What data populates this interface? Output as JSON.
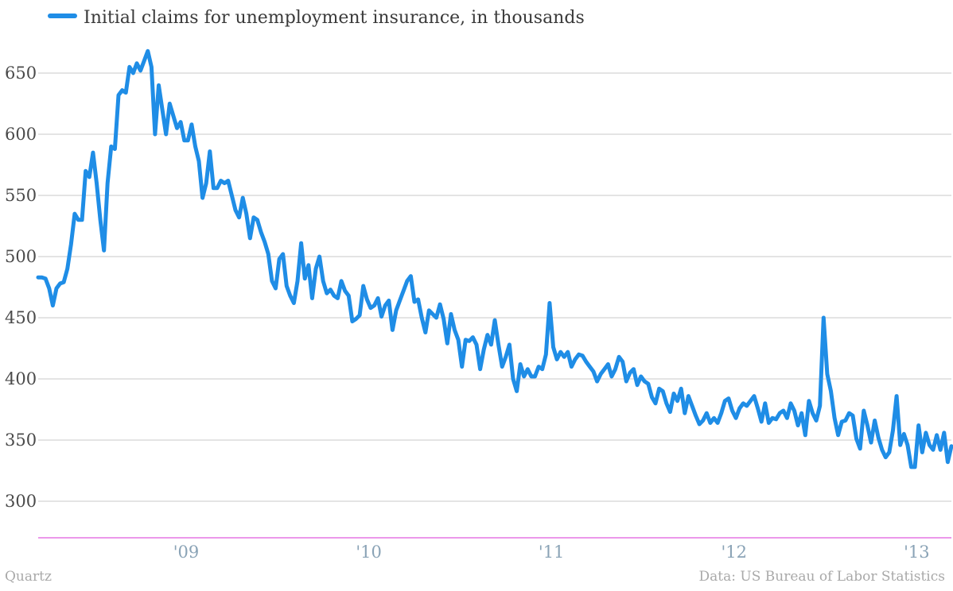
{
  "chart_data": {
    "type": "line",
    "title": "",
    "xlabel": "",
    "ylabel": "",
    "legend_placement": "top-left",
    "grid": true,
    "ylim": [
      270,
      670
    ],
    "xlim": [
      2008.19,
      2013.19
    ],
    "x_ticks": [
      {
        "value": 2009,
        "label": "'09"
      },
      {
        "value": 2010,
        "label": "'10"
      },
      {
        "value": 2011,
        "label": "'11"
      },
      {
        "value": 2012,
        "label": "'12"
      },
      {
        "value": 2013,
        "label": "'13"
      }
    ],
    "y_ticks": [
      300,
      350,
      400,
      450,
      500,
      550,
      600,
      650
    ],
    "series": [
      {
        "name": "Initial claims for unemployment insurance, in thousands",
        "color": "#1f8de6",
        "points": [
          [
            2008.19,
            483
          ],
          [
            2008.21,
            483
          ],
          [
            2008.23,
            482
          ],
          [
            2008.25,
            474
          ],
          [
            2008.27,
            460
          ],
          [
            2008.29,
            474
          ],
          [
            2008.31,
            478
          ],
          [
            2008.33,
            479
          ],
          [
            2008.35,
            490
          ],
          [
            2008.37,
            510
          ],
          [
            2008.39,
            535
          ],
          [
            2008.41,
            530
          ],
          [
            2008.43,
            530
          ],
          [
            2008.45,
            570
          ],
          [
            2008.47,
            565
          ],
          [
            2008.49,
            585
          ],
          [
            2008.51,
            560
          ],
          [
            2008.53,
            530
          ],
          [
            2008.55,
            505
          ],
          [
            2008.57,
            560
          ],
          [
            2008.59,
            590
          ],
          [
            2008.61,
            588
          ],
          [
            2008.63,
            632
          ],
          [
            2008.65,
            636
          ],
          [
            2008.67,
            634
          ],
          [
            2008.69,
            655
          ],
          [
            2008.71,
            650
          ],
          [
            2008.73,
            658
          ],
          [
            2008.75,
            652
          ],
          [
            2008.77,
            660
          ],
          [
            2008.79,
            668
          ],
          [
            2008.81,
            655
          ],
          [
            2008.83,
            600
          ],
          [
            2008.85,
            640
          ],
          [
            2008.87,
            620
          ],
          [
            2008.89,
            600
          ],
          [
            2008.91,
            625
          ],
          [
            2008.93,
            615
          ],
          [
            2008.95,
            605
          ],
          [
            2008.97,
            610
          ],
          [
            2008.99,
            595
          ],
          [
            2009.01,
            595
          ],
          [
            2009.03,
            608
          ],
          [
            2009.05,
            590
          ],
          [
            2009.07,
            578
          ],
          [
            2009.09,
            548
          ],
          [
            2009.11,
            560
          ],
          [
            2009.13,
            586
          ],
          [
            2009.15,
            556
          ],
          [
            2009.17,
            556
          ],
          [
            2009.19,
            562
          ],
          [
            2009.21,
            560
          ],
          [
            2009.23,
            562
          ],
          [
            2009.25,
            550
          ],
          [
            2009.27,
            538
          ],
          [
            2009.29,
            532
          ],
          [
            2009.31,
            548
          ],
          [
            2009.33,
            535
          ],
          [
            2009.35,
            515
          ],
          [
            2009.37,
            532
          ],
          [
            2009.39,
            530
          ],
          [
            2009.41,
            520
          ],
          [
            2009.43,
            512
          ],
          [
            2009.45,
            502
          ],
          [
            2009.47,
            480
          ],
          [
            2009.49,
            474
          ],
          [
            2009.51,
            498
          ],
          [
            2009.53,
            502
          ],
          [
            2009.55,
            476
          ],
          [
            2009.57,
            468
          ],
          [
            2009.59,
            462
          ],
          [
            2009.61,
            480
          ],
          [
            2009.63,
            511
          ],
          [
            2009.65,
            482
          ],
          [
            2009.67,
            493
          ],
          [
            2009.69,
            466
          ],
          [
            2009.71,
            490
          ],
          [
            2009.73,
            500
          ],
          [
            2009.75,
            480
          ],
          [
            2009.77,
            470
          ],
          [
            2009.79,
            473
          ],
          [
            2009.81,
            468
          ],
          [
            2009.83,
            466
          ],
          [
            2009.85,
            480
          ],
          [
            2009.87,
            472
          ],
          [
            2009.89,
            468
          ],
          [
            2009.91,
            447
          ],
          [
            2009.93,
            449
          ],
          [
            2009.95,
            452
          ],
          [
            2009.97,
            476
          ],
          [
            2009.99,
            465
          ],
          [
            2010.01,
            458
          ],
          [
            2010.03,
            460
          ],
          [
            2010.05,
            466
          ],
          [
            2010.07,
            451
          ],
          [
            2010.09,
            460
          ],
          [
            2010.11,
            464
          ],
          [
            2010.13,
            440
          ],
          [
            2010.15,
            456
          ],
          [
            2010.17,
            464
          ],
          [
            2010.19,
            472
          ],
          [
            2010.21,
            480
          ],
          [
            2010.23,
            484
          ],
          [
            2010.25,
            463
          ],
          [
            2010.27,
            465
          ],
          [
            2010.29,
            450
          ],
          [
            2010.31,
            438
          ],
          [
            2010.33,
            456
          ],
          [
            2010.35,
            453
          ],
          [
            2010.37,
            450
          ],
          [
            2010.39,
            461
          ],
          [
            2010.41,
            449
          ],
          [
            2010.43,
            429
          ],
          [
            2010.45,
            453
          ],
          [
            2010.47,
            440
          ],
          [
            2010.49,
            432
          ],
          [
            2010.51,
            410
          ],
          [
            2010.53,
            432
          ],
          [
            2010.55,
            431
          ],
          [
            2010.57,
            434
          ],
          [
            2010.59,
            428
          ],
          [
            2010.61,
            408
          ],
          [
            2010.63,
            424
          ],
          [
            2010.65,
            436
          ],
          [
            2010.67,
            428
          ],
          [
            2010.69,
            448
          ],
          [
            2010.71,
            428
          ],
          [
            2010.73,
            410
          ],
          [
            2010.75,
            418
          ],
          [
            2010.77,
            428
          ],
          [
            2010.79,
            400
          ],
          [
            2010.81,
            390
          ],
          [
            2010.83,
            412
          ],
          [
            2010.85,
            402
          ],
          [
            2010.87,
            408
          ],
          [
            2010.89,
            402
          ],
          [
            2010.91,
            402
          ],
          [
            2010.93,
            410
          ],
          [
            2010.95,
            408
          ],
          [
            2010.97,
            420
          ],
          [
            2010.99,
            462
          ],
          [
            2011.01,
            426
          ],
          [
            2011.03,
            416
          ],
          [
            2011.05,
            422
          ],
          [
            2011.07,
            418
          ],
          [
            2011.09,
            422
          ],
          [
            2011.11,
            410
          ],
          [
            2011.13,
            416
          ],
          [
            2011.15,
            420
          ],
          [
            2011.17,
            419
          ],
          [
            2011.19,
            414
          ],
          [
            2011.21,
            410
          ],
          [
            2011.23,
            406
          ],
          [
            2011.25,
            398
          ],
          [
            2011.27,
            404
          ],
          [
            2011.29,
            408
          ],
          [
            2011.31,
            412
          ],
          [
            2011.33,
            402
          ],
          [
            2011.35,
            408
          ],
          [
            2011.37,
            418
          ],
          [
            2011.39,
            414
          ],
          [
            2011.41,
            398
          ],
          [
            2011.43,
            405
          ],
          [
            2011.45,
            408
          ],
          [
            2011.47,
            395
          ],
          [
            2011.49,
            402
          ],
          [
            2011.51,
            398
          ],
          [
            2011.53,
            396
          ],
          [
            2011.55,
            385
          ],
          [
            2011.57,
            380
          ],
          [
            2011.59,
            392
          ],
          [
            2011.61,
            390
          ],
          [
            2011.63,
            380
          ],
          [
            2011.65,
            373
          ],
          [
            2011.67,
            388
          ],
          [
            2011.69,
            382
          ],
          [
            2011.71,
            392
          ],
          [
            2011.73,
            372
          ],
          [
            2011.75,
            386
          ],
          [
            2011.77,
            378
          ],
          [
            2011.79,
            370
          ],
          [
            2011.81,
            363
          ],
          [
            2011.83,
            366
          ],
          [
            2011.85,
            372
          ],
          [
            2011.87,
            364
          ],
          [
            2011.89,
            368
          ],
          [
            2011.91,
            364
          ],
          [
            2011.93,
            372
          ],
          [
            2011.95,
            382
          ],
          [
            2011.97,
            384
          ],
          [
            2011.99,
            374
          ],
          [
            2012.01,
            368
          ],
          [
            2012.03,
            376
          ],
          [
            2012.05,
            380
          ],
          [
            2012.07,
            378
          ],
          [
            2012.09,
            382
          ],
          [
            2012.11,
            386
          ],
          [
            2012.13,
            376
          ],
          [
            2012.15,
            365
          ],
          [
            2012.17,
            380
          ],
          [
            2012.19,
            364
          ],
          [
            2012.21,
            368
          ],
          [
            2012.23,
            367
          ],
          [
            2012.25,
            372
          ],
          [
            2012.27,
            374
          ],
          [
            2012.29,
            368
          ],
          [
            2012.31,
            380
          ],
          [
            2012.33,
            374
          ],
          [
            2012.35,
            362
          ],
          [
            2012.37,
            372
          ],
          [
            2012.39,
            354
          ],
          [
            2012.41,
            382
          ],
          [
            2012.43,
            372
          ],
          [
            2012.45,
            366
          ],
          [
            2012.47,
            378
          ],
          [
            2012.49,
            450
          ],
          [
            2012.51,
            404
          ],
          [
            2012.53,
            390
          ],
          [
            2012.55,
            368
          ],
          [
            2012.57,
            354
          ],
          [
            2012.59,
            365
          ],
          [
            2012.61,
            366
          ],
          [
            2012.63,
            372
          ],
          [
            2012.65,
            370
          ],
          [
            2012.67,
            351
          ],
          [
            2012.69,
            343
          ],
          [
            2012.71,
            374
          ],
          [
            2012.73,
            362
          ],
          [
            2012.75,
            348
          ],
          [
            2012.77,
            366
          ],
          [
            2012.79,
            352
          ],
          [
            2012.81,
            342
          ],
          [
            2012.83,
            336
          ],
          [
            2012.85,
            340
          ],
          [
            2012.87,
            358
          ],
          [
            2012.89,
            386
          ],
          [
            2012.91,
            346
          ],
          [
            2012.93,
            355
          ],
          [
            2012.95,
            346
          ],
          [
            2012.97,
            328
          ],
          [
            2012.99,
            328
          ],
          [
            2013.01,
            362
          ],
          [
            2013.03,
            340
          ],
          [
            2013.05,
            356
          ],
          [
            2013.07,
            346
          ],
          [
            2013.09,
            342
          ],
          [
            2013.11,
            354
          ],
          [
            2013.13,
            342
          ],
          [
            2013.15,
            356
          ],
          [
            2013.17,
            332
          ],
          [
            2013.19,
            345
          ]
        ]
      }
    ]
  },
  "footer": {
    "source": "Quartz",
    "credit": "Data: US Bureau of Labor Statistics"
  }
}
